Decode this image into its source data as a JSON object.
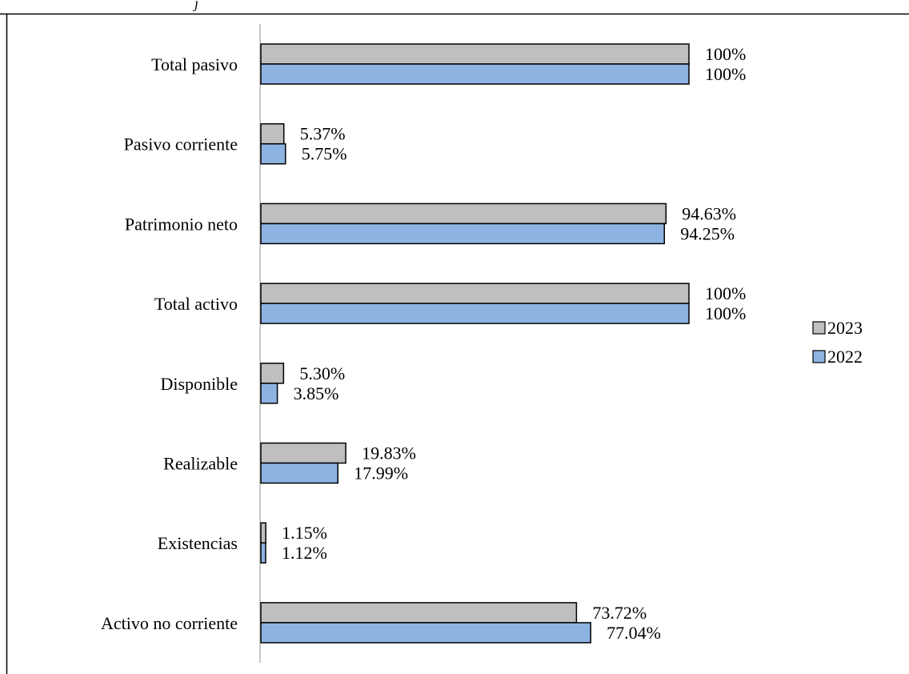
{
  "header_fragment": "j",
  "chart_data": {
    "type": "bar",
    "orientation": "horizontal",
    "categories": [
      "Total pasivo",
      "Pasivo corriente",
      "Patrimonio neto",
      "Total activo",
      "Disponible",
      "Realizable",
      "Existencias",
      "Activo no corriente"
    ],
    "series": [
      {
        "name": "2023",
        "color": "#bfbfbf",
        "values": [
          100,
          5.37,
          94.63,
          100,
          5.3,
          19.83,
          1.15,
          73.72
        ],
        "labels": [
          "100%",
          "5.37%",
          "94.63%",
          "100%",
          "5.30%",
          "19.83%",
          "1.15%",
          "73.72%"
        ]
      },
      {
        "name": "2022",
        "color": "#8db3e2",
        "values": [
          100,
          5.75,
          94.25,
          100,
          3.85,
          17.99,
          1.12,
          77.04
        ],
        "labels": [
          "100%",
          "5.75%",
          "94.25%",
          "100%",
          "3.85%",
          "17.99%",
          "1.12%",
          "77.04%"
        ]
      }
    ],
    "legend": {
      "position": "right",
      "items": [
        {
          "label": "2023",
          "color": "#bfbfbf"
        },
        {
          "label": "2022",
          "color": "#8db3e2"
        }
      ]
    },
    "xlim": [
      0,
      100
    ],
    "title": "",
    "xlabel": "",
    "ylabel": "",
    "grid": false
  }
}
